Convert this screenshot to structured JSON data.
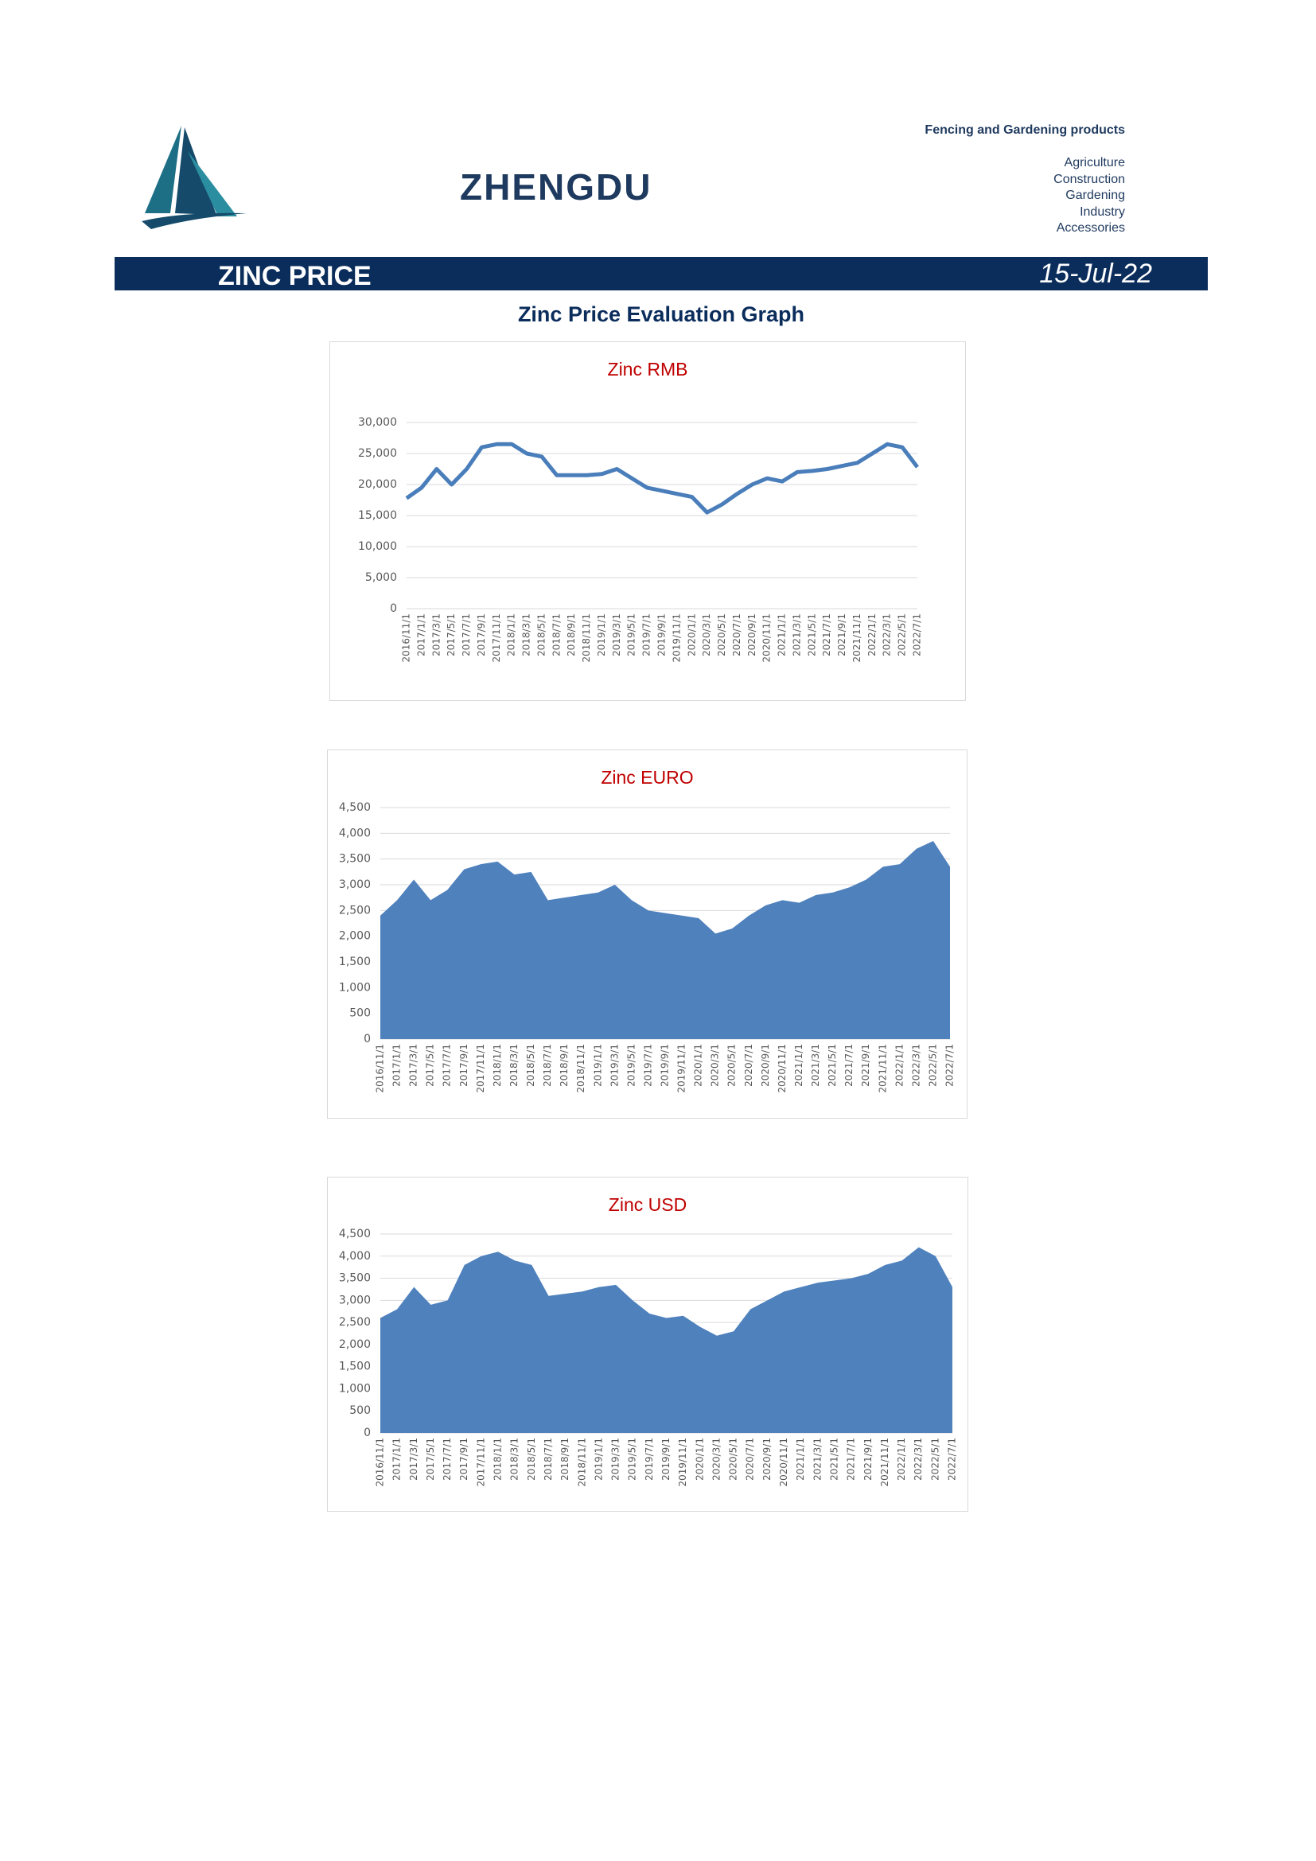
{
  "header": {
    "brand": "ZHENGDU",
    "tagline": "Fencing and Gardening products",
    "sectors": [
      "Agriculture",
      "Construction",
      "Gardening",
      "Industry",
      "Accessories"
    ]
  },
  "banner": {
    "title": "ZINC PRICE",
    "date": "15-Jul-22"
  },
  "subtitle": "Zinc Price Evaluation Graph",
  "chart_data": [
    {
      "type": "line",
      "title": "Zinc RMB",
      "color": "#4a7ebb",
      "grid": true,
      "categories": [
        "2016/11/1",
        "2017/1/1",
        "2017/3/1",
        "2017/5/1",
        "2017/7/1",
        "2017/9/1",
        "2017/11/1",
        "2018/1/1",
        "2018/3/1",
        "2018/5/1",
        "2018/7/1",
        "2018/9/1",
        "2018/11/1",
        "2019/1/1",
        "2019/3/1",
        "2019/5/1",
        "2019/7/1",
        "2019/9/1",
        "2019/11/1",
        "2020/1/1",
        "2020/3/1",
        "2020/5/1",
        "2020/7/1",
        "2020/9/1",
        "2020/11/1",
        "2021/1/1",
        "2021/3/1",
        "2021/5/1",
        "2021/7/1",
        "2021/9/1",
        "2021/11/1",
        "2022/1/1",
        "2022/3/1",
        "2022/5/1",
        "2022/7/1"
      ],
      "values": [
        17800,
        19500,
        22500,
        20000,
        22500,
        26000,
        26500,
        26500,
        25000,
        24500,
        21500,
        21500,
        21500,
        21700,
        22500,
        21000,
        19500,
        19000,
        18500,
        18000,
        15500,
        16800,
        18500,
        20000,
        21000,
        20500,
        22000,
        22200,
        22500,
        23000,
        23500,
        25000,
        26500,
        26000,
        22800
      ],
      "ylim": [
        0,
        30000
      ],
      "yticks": [
        0,
        {
          "value": 5000,
          "label": "5,000"
        },
        {
          "value": 10000,
          "label": "10,000"
        },
        {
          "value": 15000,
          "label": "15,000"
        },
        {
          "value": 20000,
          "label": "20,000"
        },
        {
          "value": 25000,
          "label": "25,000"
        },
        {
          "value": 30000,
          "label": "30,000"
        }
      ]
    },
    {
      "type": "area",
      "title": "Zinc EURO",
      "color": "#4f81bd",
      "grid": true,
      "categories": [
        "2016/11/1",
        "2017/1/1",
        "2017/3/1",
        "2017/5/1",
        "2017/7/1",
        "2017/9/1",
        "2017/11/1",
        "2018/1/1",
        "2018/3/1",
        "2018/5/1",
        "2018/7/1",
        "2018/9/1",
        "2018/11/1",
        "2019/1/1",
        "2019/3/1",
        "2019/5/1",
        "2019/7/1",
        "2019/9/1",
        "2019/11/1",
        "2020/1/1",
        "2020/3/1",
        "2020/5/1",
        "2020/7/1",
        "2020/9/1",
        "2020/11/1",
        "2021/1/1",
        "2021/3/1",
        "2021/5/1",
        "2021/7/1",
        "2021/9/1",
        "2021/11/1",
        "2022/1/1",
        "2022/3/1",
        "2022/5/1",
        "2022/7/1"
      ],
      "values": [
        2400,
        2700,
        3100,
        2700,
        2900,
        3300,
        3400,
        3450,
        3200,
        3250,
        2700,
        2750,
        2800,
        2850,
        3000,
        2700,
        2500,
        2450,
        2400,
        2350,
        2050,
        2150,
        2400,
        2600,
        2700,
        2650,
        2800,
        2850,
        2950,
        3100,
        3350,
        3400,
        3700,
        3850,
        3350
      ],
      "ylim": [
        0,
        4500
      ],
      "yticks": [
        0,
        500,
        {
          "value": 1000,
          "label": "1,000"
        },
        {
          "value": 1500,
          "label": "1,500"
        },
        {
          "value": 2000,
          "label": "2,000"
        },
        {
          "value": 2500,
          "label": "2,500"
        },
        {
          "value": 3000,
          "label": "3,000"
        },
        {
          "value": 3500,
          "label": "3,500"
        },
        {
          "value": 4000,
          "label": "4,000"
        },
        {
          "value": 4500,
          "label": "4,500"
        }
      ]
    },
    {
      "type": "area",
      "title": "Zinc USD",
      "color": "#4f81bd",
      "grid": true,
      "categories": [
        "2016/11/1",
        "2017/1/1",
        "2017/3/1",
        "2017/5/1",
        "2017/7/1",
        "2017/9/1",
        "2017/11/1",
        "2018/1/1",
        "2018/3/1",
        "2018/5/1",
        "2018/7/1",
        "2018/9/1",
        "2018/11/1",
        "2019/1/1",
        "2019/3/1",
        "2019/5/1",
        "2019/7/1",
        "2019/9/1",
        "2019/11/1",
        "2020/1/1",
        "2020/3/1",
        "2020/5/1",
        "2020/7/1",
        "2020/9/1",
        "2020/11/1",
        "2021/1/1",
        "2021/3/1",
        "2021/5/1",
        "2021/7/1",
        "2021/9/1",
        "2021/11/1",
        "2022/1/1",
        "2022/3/1",
        "2022/5/1",
        "2022/7/1"
      ],
      "values": [
        2600,
        2800,
        3300,
        2900,
        3000,
        3800,
        4000,
        4100,
        3900,
        3800,
        3100,
        3150,
        3200,
        3300,
        3350,
        3000,
        2700,
        2600,
        2650,
        2400,
        2200,
        2300,
        2800,
        3000,
        3200,
        3300,
        3400,
        3450,
        3500,
        3600,
        3800,
        3900,
        4200,
        4000,
        3300
      ],
      "ylim": [
        0,
        4500
      ],
      "yticks": [
        0,
        500,
        {
          "value": 1000,
          "label": "1,000"
        },
        {
          "value": 1500,
          "label": "1,500"
        },
        {
          "value": 2000,
          "label": "2,000"
        },
        {
          "value": 2500,
          "label": "2,500"
        },
        {
          "value": 3000,
          "label": "3,000"
        },
        {
          "value": 3500,
          "label": "3,500"
        },
        {
          "value": 4000,
          "label": "4,000"
        },
        {
          "value": 4500,
          "label": "4,500"
        }
      ]
    }
  ]
}
